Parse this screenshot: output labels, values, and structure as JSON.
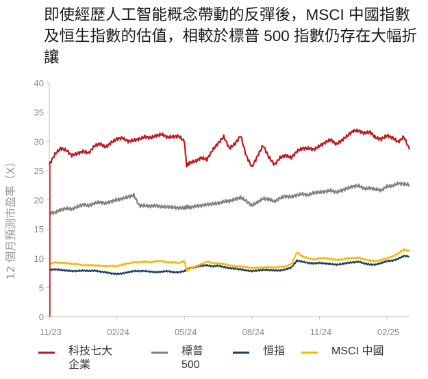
{
  "chart_data": {
    "type": "line",
    "title": "即使經歷人工智能概念帶動的反彈後，MSCI 中國指數及恒生指數的估值，相較於標普 500 指數仍存在大幅折讓",
    "ylabel": "12 個月預測市盈率（X）",
    "xlabel": "",
    "ylim": [
      0,
      40
    ],
    "yticks": [
      0,
      5,
      10,
      15,
      20,
      25,
      30,
      35,
      40
    ],
    "xlim": [
      0,
      16
    ],
    "xticks": [
      {
        "x": 0,
        "label": "11/23"
      },
      {
        "x": 3,
        "label": "02/24"
      },
      {
        "x": 6,
        "label": "05/24"
      },
      {
        "x": 9,
        "label": "08/24"
      },
      {
        "x": 12,
        "label": "11/24"
      },
      {
        "x": 15,
        "label": "02/25"
      }
    ],
    "x": [
      0,
      0.25,
      0.5,
      0.75,
      1,
      1.25,
      1.5,
      1.75,
      2,
      2.25,
      2.5,
      2.75,
      3,
      3.25,
      3.5,
      3.75,
      4,
      4.25,
      4.5,
      4.75,
      5,
      5.25,
      5.5,
      5.75,
      6,
      6.1,
      6.25,
      6.5,
      6.75,
      7,
      7.25,
      7.5,
      7.75,
      8,
      8.25,
      8.5,
      8.75,
      9,
      9.25,
      9.5,
      9.75,
      10,
      10.25,
      10.5,
      10.75,
      11,
      11.25,
      11.5,
      11.75,
      12,
      12.25,
      12.5,
      12.75,
      13,
      13.25,
      13.5,
      13.75,
      14,
      14.25,
      14.5,
      14.75,
      15,
      15.25,
      15.5,
      15.75,
      16
    ],
    "series": [
      {
        "name": "科技七大企業",
        "color": "#c0161c",
        "values": [
          26.0,
          27.8,
          28.8,
          28.5,
          27.6,
          27.9,
          28.3,
          28.0,
          29.2,
          29.6,
          29.0,
          29.8,
          30.4,
          30.6,
          30.0,
          30.2,
          30.4,
          30.8,
          30.6,
          31.0,
          31.2,
          30.7,
          30.8,
          30.9,
          30.0,
          25.8,
          26.4,
          26.6,
          27.2,
          26.9,
          28.5,
          29.7,
          30.8,
          28.8,
          29.6,
          31.0,
          27.5,
          25.6,
          27.5,
          29.3,
          27.3,
          26.0,
          27.2,
          27.6,
          27.2,
          28.3,
          28.8,
          28.8,
          28.6,
          29.2,
          29.8,
          30.3,
          29.5,
          30.2,
          31.0,
          31.8,
          31.8,
          31.4,
          31.6,
          30.6,
          30.4,
          31.0,
          30.6,
          29.9,
          30.8,
          28.6
        ]
      },
      {
        "name": "標普 500",
        "color": "#808080",
        "values": [
          17.7,
          17.8,
          18.3,
          18.5,
          18.4,
          18.8,
          19.2,
          19.0,
          19.4,
          19.6,
          19.4,
          19.7,
          20.0,
          20.2,
          20.5,
          20.8,
          19.0,
          19.0,
          18.9,
          19.0,
          18.8,
          18.8,
          18.7,
          18.6,
          18.6,
          18.8,
          18.7,
          18.9,
          19.0,
          19.2,
          19.3,
          19.4,
          19.7,
          19.8,
          20.1,
          20.4,
          19.8,
          19.0,
          19.6,
          20.2,
          20.1,
          19.7,
          20.3,
          20.6,
          20.5,
          20.8,
          21.0,
          20.8,
          21.2,
          21.3,
          21.4,
          21.6,
          21.3,
          21.6,
          22.0,
          22.3,
          22.4,
          21.9,
          22.0,
          21.8,
          21.6,
          22.3,
          22.4,
          22.8,
          22.7,
          22.6
        ]
      },
      {
        "name": "恒指",
        "color": "#1f3f5b",
        "values": [
          8.0,
          8.1,
          8.0,
          7.9,
          7.8,
          7.8,
          7.9,
          7.8,
          7.9,
          7.7,
          7.6,
          7.4,
          7.3,
          7.4,
          7.6,
          7.8,
          7.8,
          7.8,
          7.7,
          7.6,
          7.7,
          7.8,
          7.6,
          7.6,
          7.8,
          8.0,
          8.3,
          8.5,
          8.7,
          8.8,
          8.6,
          8.7,
          8.5,
          8.3,
          8.2,
          8.1,
          7.9,
          7.8,
          7.9,
          8.0,
          8.0,
          7.9,
          7.9,
          8.1,
          8.4,
          9.6,
          9.4,
          9.2,
          9.1,
          9.2,
          9.1,
          9.0,
          8.9,
          9.0,
          9.2,
          9.3,
          9.4,
          9.1,
          8.9,
          8.9,
          9.2,
          9.5,
          9.6,
          9.9,
          10.4,
          10.3
        ]
      },
      {
        "name": "MSCI 中國",
        "color": "#f5b800",
        "values": [
          9.0,
          9.3,
          9.2,
          9.2,
          9.0,
          9.0,
          8.8,
          8.8,
          8.8,
          8.7,
          8.6,
          8.7,
          8.6,
          8.9,
          9.1,
          9.3,
          9.3,
          9.4,
          9.3,
          9.5,
          9.5,
          9.3,
          9.3,
          9.2,
          9.5,
          7.9,
          8.2,
          8.6,
          9.0,
          9.4,
          9.2,
          9.1,
          9.0,
          8.8,
          8.6,
          8.6,
          8.5,
          8.3,
          8.4,
          8.4,
          8.5,
          8.4,
          8.5,
          8.6,
          9.0,
          11.0,
          10.3,
          10.0,
          9.8,
          10.0,
          10.0,
          9.9,
          9.7,
          9.8,
          10.0,
          10.0,
          10.1,
          9.8,
          9.6,
          9.5,
          9.7,
          10.0,
          10.3,
          10.8,
          11.5,
          11.2
        ]
      }
    ],
    "legend": {
      "placement": "bottom",
      "entries": [
        {
          "label_lines": [
            "科技七大",
            "企業"
          ],
          "color": "#c0161c"
        },
        {
          "label_lines": [
            "標普",
            "500"
          ],
          "color": "#808080"
        },
        {
          "label_lines": [
            "恒指"
          ],
          "color": "#1f3f5b"
        },
        {
          "label_lines": [
            "MSCI 中國"
          ],
          "color": "#f5b800"
        }
      ]
    },
    "grid": false
  }
}
